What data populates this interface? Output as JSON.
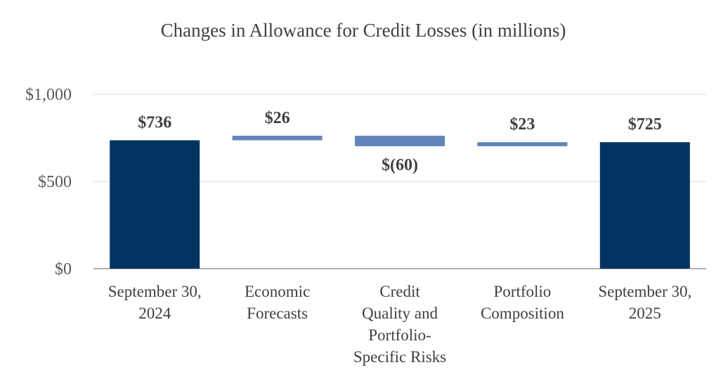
{
  "chart_data": {
    "type": "bar",
    "subtype": "waterfall",
    "title": "Changes in Allowance for Credit Losses (in millions)",
    "xlabel": "",
    "ylabel": "",
    "ylim": [
      0,
      1000
    ],
    "yticks": [
      0,
      500,
      1000
    ],
    "ytick_labels": [
      "$0",
      "$500",
      "$1,000"
    ],
    "grid": true,
    "legend": "none",
    "categories": [
      [
        "September 30,",
        "2024"
      ],
      [
        "Economic",
        "Forecasts"
      ],
      [
        "Credit",
        "Quality and",
        "Portfolio-",
        "Specific Risks"
      ],
      [
        "Portfolio",
        "Composition"
      ],
      [
        "September 30,",
        "2025"
      ]
    ],
    "bars": [
      {
        "kind": "total",
        "start": 0,
        "end": 736,
        "label": "$736"
      },
      {
        "kind": "change",
        "start": 736,
        "end": 762,
        "label": "$26"
      },
      {
        "kind": "change",
        "start": 762,
        "end": 702,
        "label": "$(60)"
      },
      {
        "kind": "change",
        "start": 702,
        "end": 725,
        "label": "$23"
      },
      {
        "kind": "total",
        "start": 0,
        "end": 725,
        "label": "$725"
      }
    ],
    "colors": {
      "total": "#003562",
      "change": "#6385bb",
      "grid": "#d9d9d9",
      "axis": "#7f7f7f"
    }
  }
}
